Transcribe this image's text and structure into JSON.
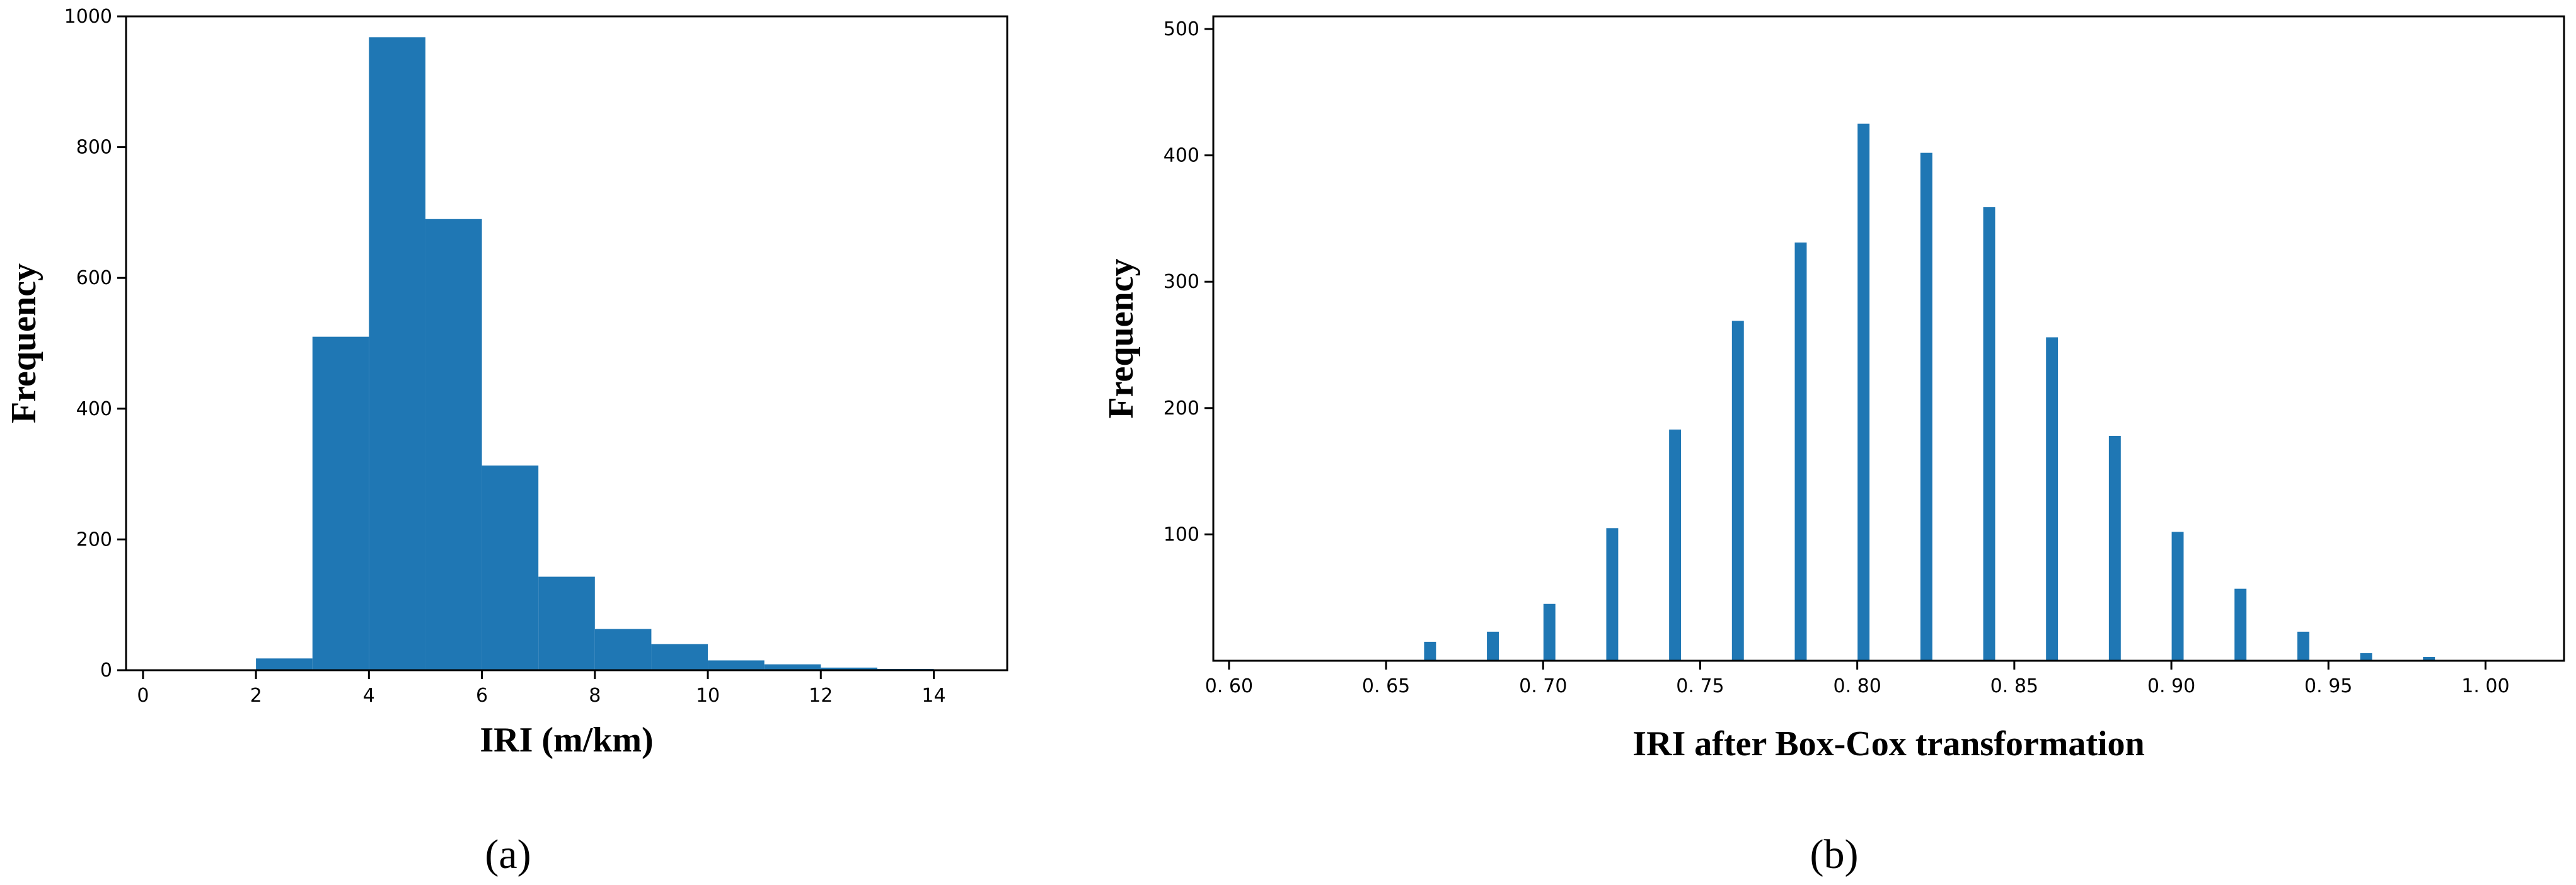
{
  "chart_data": [
    {
      "type": "bar",
      "panel": "a",
      "panel_label": "(a)",
      "title": "",
      "xlabel": "IRI (m/km)",
      "ylabel": "Frequency",
      "xlim": [
        -0.3,
        15.3
      ],
      "ylim": [
        0,
        1000
      ],
      "xticks": [
        "0",
        "2",
        "4",
        "6",
        "8",
        "10",
        "12",
        "14"
      ],
      "xtick_values": [
        0,
        2,
        4,
        6,
        8,
        10,
        12,
        14
      ],
      "yticks": [
        "0",
        "200",
        "400",
        "600",
        "800",
        "1000"
      ],
      "ytick_values": [
        0,
        200,
        400,
        600,
        800,
        1000
      ],
      "grid": false,
      "color": "#1f77b4",
      "bins": [
        {
          "x0": 2,
          "x1": 3,
          "value": 18
        },
        {
          "x0": 3,
          "x1": 4,
          "value": 510
        },
        {
          "x0": 4,
          "x1": 5,
          "value": 968
        },
        {
          "x0": 5,
          "x1": 6,
          "value": 690
        },
        {
          "x0": 6,
          "x1": 7,
          "value": 313
        },
        {
          "x0": 7,
          "x1": 8,
          "value": 143
        },
        {
          "x0": 8,
          "x1": 9,
          "value": 63
        },
        {
          "x0": 9,
          "x1": 10,
          "value": 40
        },
        {
          "x0": 10,
          "x1": 11,
          "value": 15
        },
        {
          "x0": 11,
          "x1": 12,
          "value": 9
        },
        {
          "x0": 12,
          "x1": 13,
          "value": 4
        },
        {
          "x0": 13,
          "x1": 14,
          "value": 2
        },
        {
          "x0": 14,
          "x1": 15,
          "value": 1
        }
      ]
    },
    {
      "type": "bar",
      "panel": "b",
      "panel_label": "(b)",
      "title": "",
      "xlabel": "IRI after Box-Cox transformation",
      "ylabel": "Frequency",
      "xlim": [
        0.595,
        1.025
      ],
      "ylim": [
        0,
        510
      ],
      "xticks": [
        "0. 60",
        "0. 65",
        "0. 70",
        "0. 75",
        "0. 80",
        "0. 85",
        "0. 90",
        "0. 95",
        "1. 00"
      ],
      "xtick_values": [
        0.6,
        0.65,
        0.7,
        0.75,
        0.8,
        0.85,
        0.9,
        0.95,
        1.0
      ],
      "yticks": [
        "100",
        "200",
        "300",
        "400",
        "500"
      ],
      "ytick_values": [
        100,
        200,
        300,
        400,
        500
      ],
      "grid": false,
      "color": "#1f77b4",
      "bar_width": 0.0038,
      "bins": [
        {
          "x": 0.664,
          "value": 15
        },
        {
          "x": 0.684,
          "value": 23
        },
        {
          "x": 0.702,
          "value": 45
        },
        {
          "x": 0.722,
          "value": 105
        },
        {
          "x": 0.742,
          "value": 183
        },
        {
          "x": 0.762,
          "value": 269
        },
        {
          "x": 0.782,
          "value": 331
        },
        {
          "x": 0.802,
          "value": 425
        },
        {
          "x": 0.822,
          "value": 402
        },
        {
          "x": 0.842,
          "value": 359
        },
        {
          "x": 0.862,
          "value": 256
        },
        {
          "x": 0.882,
          "value": 178
        },
        {
          "x": 0.902,
          "value": 102
        },
        {
          "x": 0.922,
          "value": 57
        },
        {
          "x": 0.942,
          "value": 23
        },
        {
          "x": 0.962,
          "value": 6
        },
        {
          "x": 0.982,
          "value": 3
        }
      ]
    }
  ]
}
